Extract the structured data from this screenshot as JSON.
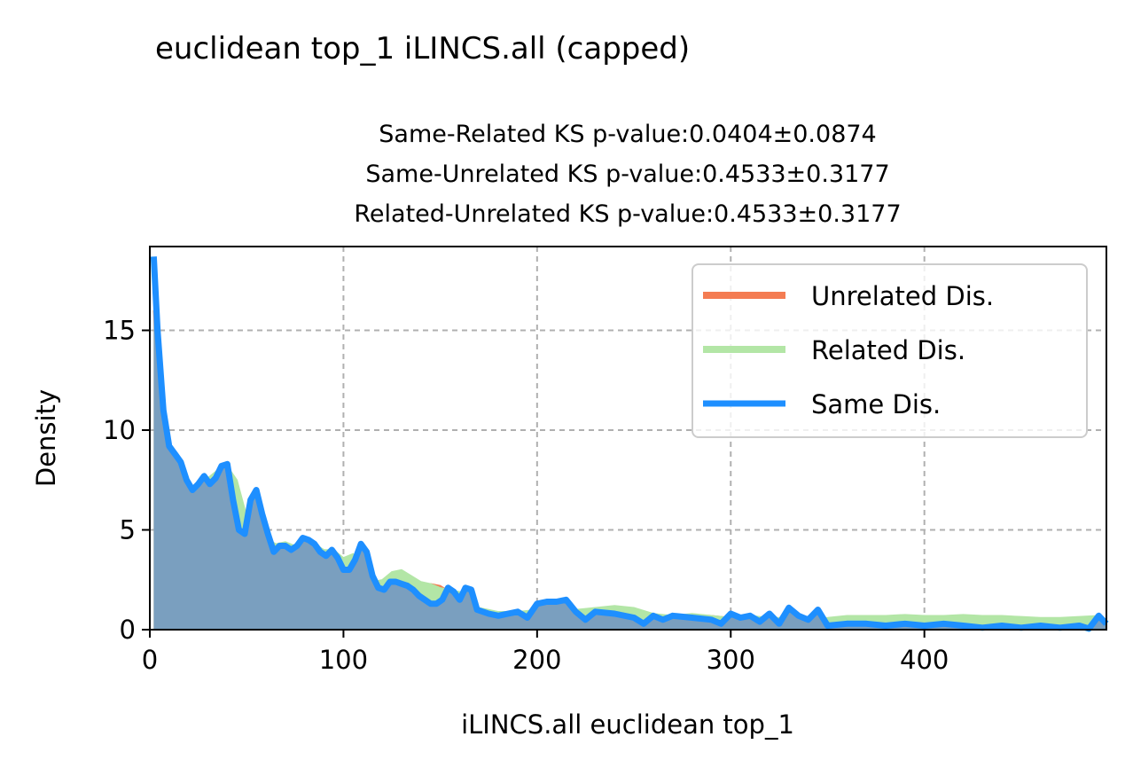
{
  "figure_title": "euclidean top_1 iLINCS.all (capped)",
  "chart_data": {
    "type": "area",
    "title_lines": [
      "Same-Related KS p-value:0.0404±0.0874",
      "Same-Unrelated KS p-value:0.4533±0.3177",
      "Related-Unrelated KS p-value:0.4533±0.3177"
    ],
    "xlabel": "iLINCS.all euclidean top_1",
    "ylabel": "Density",
    "xlim": [
      0,
      494
    ],
    "ylim": [
      0,
      19.2
    ],
    "xticks": [
      0,
      100,
      200,
      300,
      400
    ],
    "xtick_labels": [
      "0",
      "100",
      "200",
      "300",
      "400"
    ],
    "yticks": [
      0,
      5,
      10,
      15
    ],
    "ytick_labels": [
      "0",
      "5",
      "10",
      "15"
    ],
    "grid": true,
    "grid_style": "dashed",
    "legend_position": "top-right",
    "colors": {
      "unrelated": "#f47c52",
      "related": "#b3e6a6",
      "same": "#1e8fff",
      "overlap_fill": "#7a9fbf",
      "grid": "#b0b0b0"
    },
    "series": [
      {
        "key": "unrelated",
        "name": "Unrelated Dis.",
        "x": [
          2,
          5,
          10,
          15,
          20,
          25,
          30,
          35,
          40,
          45,
          50,
          55,
          60,
          65,
          70,
          75,
          80,
          85,
          90,
          95,
          100,
          105,
          110,
          115,
          120,
          125,
          130,
          135,
          140,
          145,
          150,
          155,
          160,
          165,
          170,
          175,
          180,
          190,
          200,
          210,
          220,
          230,
          240,
          250,
          260,
          270,
          280,
          290,
          300,
          310,
          320,
          330,
          340,
          350,
          360,
          370,
          380,
          390,
          400,
          410,
          420,
          430,
          440,
          450,
          460,
          470,
          480,
          490
        ],
        "y": [
          16.0,
          9.0,
          8.1,
          7.7,
          7.0,
          7.4,
          7.2,
          7.6,
          7.5,
          6.8,
          5.5,
          6.0,
          4.5,
          4.0,
          4.0,
          3.9,
          3.8,
          3.6,
          3.4,
          3.3,
          3.2,
          3.1,
          2.7,
          2.0,
          1.8,
          1.9,
          2.3,
          2.2,
          2.1,
          2.3,
          2.2,
          1.9,
          1.8,
          1.2,
          1.0,
          0.9,
          0.8,
          0.8,
          0.75,
          0.8,
          0.75,
          0.8,
          0.8,
          0.75,
          0.7,
          0.7,
          0.75,
          0.7,
          0.6,
          0.6,
          0.55,
          0.6,
          0.55,
          0.5,
          0.5,
          0.5,
          0.5,
          0.5,
          0.5,
          0.5,
          0.5,
          0.5,
          0.5,
          0.5,
          0.5,
          0.5,
          0.5,
          0.5
        ]
      },
      {
        "key": "related",
        "name": "Related Dis.",
        "x": [
          2,
          5,
          10,
          15,
          20,
          25,
          30,
          35,
          40,
          45,
          50,
          55,
          60,
          65,
          70,
          75,
          80,
          85,
          90,
          95,
          100,
          105,
          110,
          115,
          120,
          125,
          130,
          135,
          140,
          145,
          150,
          155,
          160,
          165,
          170,
          175,
          180,
          190,
          200,
          210,
          220,
          230,
          240,
          250,
          260,
          270,
          280,
          290,
          300,
          310,
          320,
          330,
          340,
          350,
          360,
          370,
          380,
          390,
          400,
          410,
          420,
          430,
          440,
          450,
          460,
          470,
          480,
          490
        ],
        "y": [
          17.8,
          8.4,
          8.2,
          7.5,
          6.3,
          7.3,
          7.6,
          8.0,
          8.2,
          7.5,
          5.7,
          6.3,
          4.6,
          4.3,
          4.4,
          4.2,
          4.6,
          4.3,
          4.0,
          4.0,
          3.6,
          3.8,
          2.8,
          2.4,
          2.5,
          2.9,
          3.0,
          2.7,
          2.4,
          2.3,
          2.1,
          2.0,
          1.9,
          1.4,
          1.1,
          1.0,
          0.9,
          0.9,
          1.0,
          1.1,
          1.0,
          1.1,
          1.2,
          1.1,
          0.8,
          0.7,
          0.8,
          0.7,
          0.6,
          0.7,
          0.6,
          0.6,
          0.55,
          0.6,
          0.7,
          0.7,
          0.7,
          0.75,
          0.7,
          0.7,
          0.75,
          0.7,
          0.7,
          0.65,
          0.6,
          0.6,
          0.65,
          0.7
        ]
      },
      {
        "key": "same",
        "name": "Same Dis.",
        "x": [
          2,
          4,
          7,
          10,
          13,
          16,
          19,
          22,
          25,
          28,
          31,
          34,
          37,
          40,
          43,
          46,
          49,
          52,
          55,
          58,
          61,
          64,
          67,
          70,
          73,
          76,
          79,
          82,
          85,
          88,
          91,
          94,
          97,
          100,
          103,
          106,
          109,
          112,
          115,
          118,
          121,
          124,
          127,
          130,
          133,
          136,
          139,
          142,
          145,
          148,
          151,
          154,
          157,
          160,
          163,
          166,
          169,
          175,
          180,
          185,
          190,
          195,
          200,
          205,
          210,
          215,
          220,
          225,
          230,
          240,
          250,
          255,
          260,
          265,
          270,
          280,
          290,
          295,
          300,
          305,
          310,
          315,
          320,
          325,
          330,
          335,
          340,
          345,
          350,
          360,
          370,
          380,
          390,
          400,
          410,
          420,
          430,
          440,
          450,
          460,
          470,
          480,
          485,
          490,
          494
        ],
        "y": [
          18.7,
          15.0,
          11.0,
          9.2,
          8.8,
          8.4,
          7.5,
          7.0,
          7.3,
          7.7,
          7.3,
          7.6,
          8.2,
          8.3,
          6.5,
          5.0,
          4.8,
          6.5,
          7.0,
          5.8,
          4.8,
          3.9,
          4.2,
          4.2,
          4.0,
          4.2,
          4.6,
          4.5,
          4.3,
          3.9,
          3.7,
          4.0,
          3.6,
          3.0,
          3.0,
          3.5,
          4.3,
          3.9,
          2.7,
          2.1,
          2.0,
          2.4,
          2.4,
          2.3,
          2.2,
          2.0,
          1.7,
          1.5,
          1.3,
          1.3,
          1.5,
          2.1,
          1.9,
          1.5,
          2.1,
          2.0,
          1.0,
          0.8,
          0.7,
          0.8,
          0.9,
          0.6,
          1.3,
          1.4,
          1.4,
          1.5,
          0.9,
          0.5,
          0.9,
          0.8,
          0.6,
          0.3,
          0.7,
          0.5,
          0.7,
          0.6,
          0.5,
          0.3,
          0.8,
          0.6,
          0.7,
          0.4,
          0.8,
          0.3,
          1.1,
          0.7,
          0.5,
          1.0,
          0.2,
          0.3,
          0.3,
          0.2,
          0.3,
          0.2,
          0.3,
          0.2,
          0.1,
          0.2,
          0.1,
          0.2,
          0.1,
          0.2,
          0.05,
          0.7,
          0.3
        ]
      }
    ]
  }
}
